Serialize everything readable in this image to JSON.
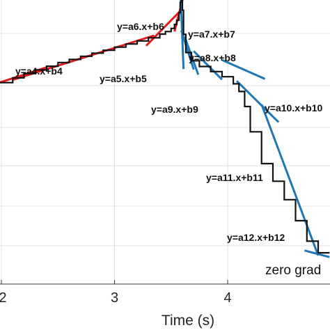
{
  "chart_data": {
    "type": "line",
    "title": "",
    "xlabel": "Time (s)",
    "ylabel": "",
    "xlim": [
      1.98,
      4.9
    ],
    "ylim": [
      0,
      1
    ],
    "grid": true,
    "x_ticks": [
      2,
      3,
      4
    ],
    "x_tick_labels": [
      "2",
      "3",
      "4"
    ],
    "series": [
      {
        "x": [
          1.98,
          2.1,
          2.2,
          2.3,
          2.4,
          2.5,
          2.6,
          2.7,
          2.8,
          2.9,
          3.0,
          3.1,
          3.2,
          3.3,
          3.4,
          3.45,
          3.5,
          3.53,
          3.55,
          3.57,
          3.58,
          3.59,
          3.6,
          3.61,
          3.63,
          3.68,
          3.75,
          3.85,
          3.95,
          4.05,
          4.1,
          4.15,
          4.2,
          4.3,
          4.4,
          4.5,
          4.6,
          4.7,
          4.8,
          4.9
        ],
        "y": [
          0.709,
          0.726,
          0.741,
          0.754,
          0.767,
          0.78,
          0.791,
          0.802,
          0.813,
          0.823,
          0.834,
          0.845,
          0.856,
          0.867,
          0.88,
          0.889,
          0.9,
          0.914,
          0.929,
          0.956,
          0.992,
          1.018,
          0.964,
          0.879,
          0.815,
          0.786,
          0.766,
          0.748,
          0.73,
          0.705,
          0.678,
          0.625,
          0.536,
          0.424,
          0.362,
          0.297,
          0.223,
          0.151,
          0.11,
          0.11
        ]
      }
    ],
    "fitted_segments": [
      {
        "label": "y=a4.x+b4",
        "color": "#e41a1c",
        "x": [
          1.98,
          2.4
        ],
        "y": [
          0.709,
          0.763
        ]
      },
      {
        "label": "",
        "color": "#e41a1c",
        "x": [
          2.1,
          3.35
        ],
        "y": [
          0.719,
          0.875
        ]
      },
      {
        "label": "y=a5.x+b5",
        "color": "#e41a1c",
        "x": [
          3.28,
          3.57
        ],
        "y": [
          0.839,
          0.957
        ]
      },
      {
        "label": "y=a6.x+b6",
        "color": "#e41a1c",
        "x": [
          3.53,
          3.63
        ],
        "y": [
          0.889,
          1.047
        ]
      },
      {
        "label": "y=a7.x+b7",
        "color": "#1f77b4",
        "x": [
          3.58,
          3.61
        ],
        "y": [
          1.061,
          0.757
        ]
      },
      {
        "label": "y=a8.x+b8",
        "color": "#1f77b4",
        "x": [
          3.59,
          3.7
        ],
        "y": [
          0.893,
          0.755
        ]
      },
      {
        "label": "y=a9.x+b9",
        "color": "#1f77b4",
        "x": [
          3.62,
          3.74
        ],
        "y": [
          0.871,
          0.737
        ]
      },
      {
        "label": "",
        "color": "#1f77b4",
        "x": [
          3.7,
          3.95
        ],
        "y": [
          0.82,
          0.72
        ]
      },
      {
        "label": "",
        "color": "#1f77b4",
        "x": [
          3.95,
          4.33
        ],
        "y": [
          0.789,
          0.722
        ]
      },
      {
        "label": "y=a10.x+b10",
        "color": "#1f77b4",
        "x": [
          4.08,
          4.45
        ],
        "y": [
          0.715,
          0.57
        ]
      },
      {
        "label": "y=a11.x+b11",
        "color": "#1f77b4",
        "x": [
          4.3,
          4.8
        ],
        "y": [
          0.632,
          0.101
        ]
      },
      {
        "label": "y=a12.x+b12",
        "color": "#1f77b4",
        "x": [
          4.68,
          4.9
        ],
        "y": [
          0.118,
          0.095
        ]
      }
    ],
    "annotations": [
      "y=a6.x+b6",
      "y=a7.x+b7",
      "y=a8.x+b8",
      "y=a4.x+b4",
      "y=a5.x+b5",
      "y=a9.x+b9",
      "y=a10.x+b10",
      "y=a11.x+b11",
      "y=a12.x+b12",
      "zero grad"
    ]
  }
}
